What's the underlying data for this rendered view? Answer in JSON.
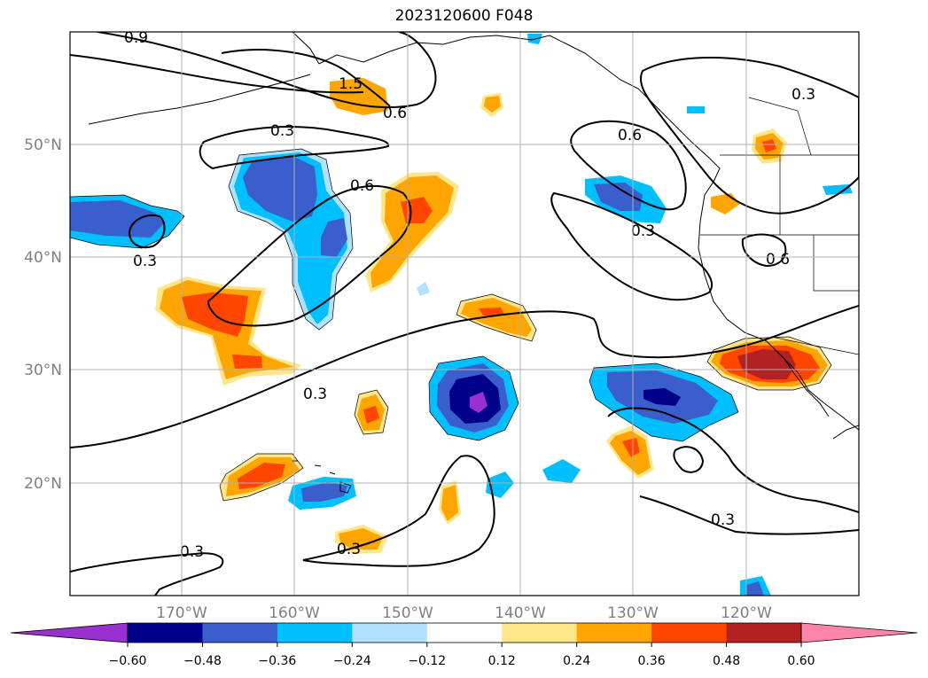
{
  "title": "2023120600 F048",
  "map": {
    "lon_ticks": [
      "170°W",
      "160°W",
      "150°W",
      "140°W",
      "130°W",
      "120°W"
    ],
    "lat_ticks": [
      "50°N",
      "40°N",
      "30°N",
      "20°N"
    ],
    "contour_labels": [
      "0.9",
      "1.5",
      "0.6",
      "0.3",
      "0.6",
      "0.3",
      "0.6",
      "0.3",
      "0.3",
      "0.6",
      "0.3",
      "0.3",
      "0.3",
      "0.3"
    ]
  },
  "colorbar": {
    "ticks": [
      "−0.60",
      "−0.48",
      "−0.36",
      "−0.24",
      "−0.12",
      "0.12",
      "0.24",
      "0.36",
      "0.48",
      "0.60"
    ],
    "colors": [
      "#9b30d0",
      "#00008b",
      "#3a5fcd",
      "#00bfff",
      "#b0e2ff",
      "#ffffff",
      "#ffe68a",
      "#ffa500",
      "#ff4500",
      "#b22222",
      "#ff85a8",
      "#ff85a8"
    ]
  },
  "chart_data": {
    "type": "heatmap",
    "title": "2023120600 F048",
    "x_ticks": [
      "170°W",
      "160°W",
      "150°W",
      "140°W",
      "130°W",
      "120°W"
    ],
    "y_ticks": [
      "50°N",
      "40°N",
      "30°N",
      "20°N"
    ],
    "xlim": [
      -180,
      -110
    ],
    "ylim": [
      10,
      60
    ],
    "colorbar_levels": [
      -0.6,
      -0.48,
      -0.36,
      -0.24,
      -0.12,
      0.12,
      0.24,
      0.36,
      0.48,
      0.6
    ],
    "contour_levels": [
      0.3,
      0.6,
      0.9,
      1.5
    ]
  }
}
